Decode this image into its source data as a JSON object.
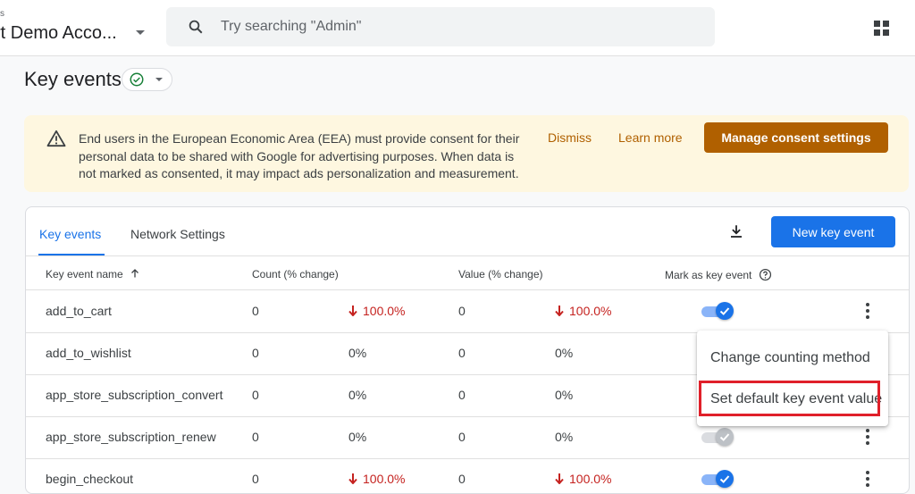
{
  "header": {
    "account_small": "s",
    "account_name": "rt Demo Acco...",
    "search_placeholder": "Try searching \"Admin\""
  },
  "page": {
    "title": "Key events"
  },
  "banner": {
    "text": "End users in the European Economic Area (EEA) must provide consent for their personal data to be shared with Google for advertising purposes. When data is not marked as consented, it may impact ads personalization and measurement.",
    "dismiss": "Dismiss",
    "learn_more": "Learn more",
    "manage": "Manage consent settings"
  },
  "tabs": [
    {
      "label": "Key events",
      "active": true
    },
    {
      "label": "Network Settings",
      "active": false
    }
  ],
  "new_button": "New key event",
  "table": {
    "headers": {
      "name": "Key event name",
      "count": "Count (% change)",
      "value": "Value (% change)",
      "mark": "Mark as key event"
    },
    "rows": [
      {
        "name": "add_to_cart",
        "count": "0",
        "count_change": "100.0%",
        "count_down": true,
        "value": "0",
        "value_change": "100.0%",
        "value_down": true,
        "key_event": true
      },
      {
        "name": "add_to_wishlist",
        "count": "0",
        "count_change": "0%",
        "count_down": false,
        "value": "0",
        "value_change": "0%",
        "value_down": false,
        "key_event": true
      },
      {
        "name": "app_store_subscription_convert",
        "count": "0",
        "count_change": "0%",
        "count_down": false,
        "value": "0",
        "value_change": "0%",
        "value_down": false,
        "key_event": true
      },
      {
        "name": "app_store_subscription_renew",
        "count": "0",
        "count_change": "0%",
        "count_down": false,
        "value": "0",
        "value_change": "0%",
        "value_down": false,
        "key_event": false
      },
      {
        "name": "begin_checkout",
        "count": "0",
        "count_change": "100.0%",
        "count_down": true,
        "value": "0",
        "value_change": "100.0%",
        "value_down": true,
        "key_event": true
      }
    ]
  },
  "menu": {
    "items": [
      "Change counting method",
      "Set default key event value"
    ]
  },
  "colors": {
    "primary": "#1a73e8",
    "warning_bg": "#fef7e0",
    "warning_accent": "#b06000",
    "negative": "#c5221f",
    "highlight": "#e0202a"
  }
}
